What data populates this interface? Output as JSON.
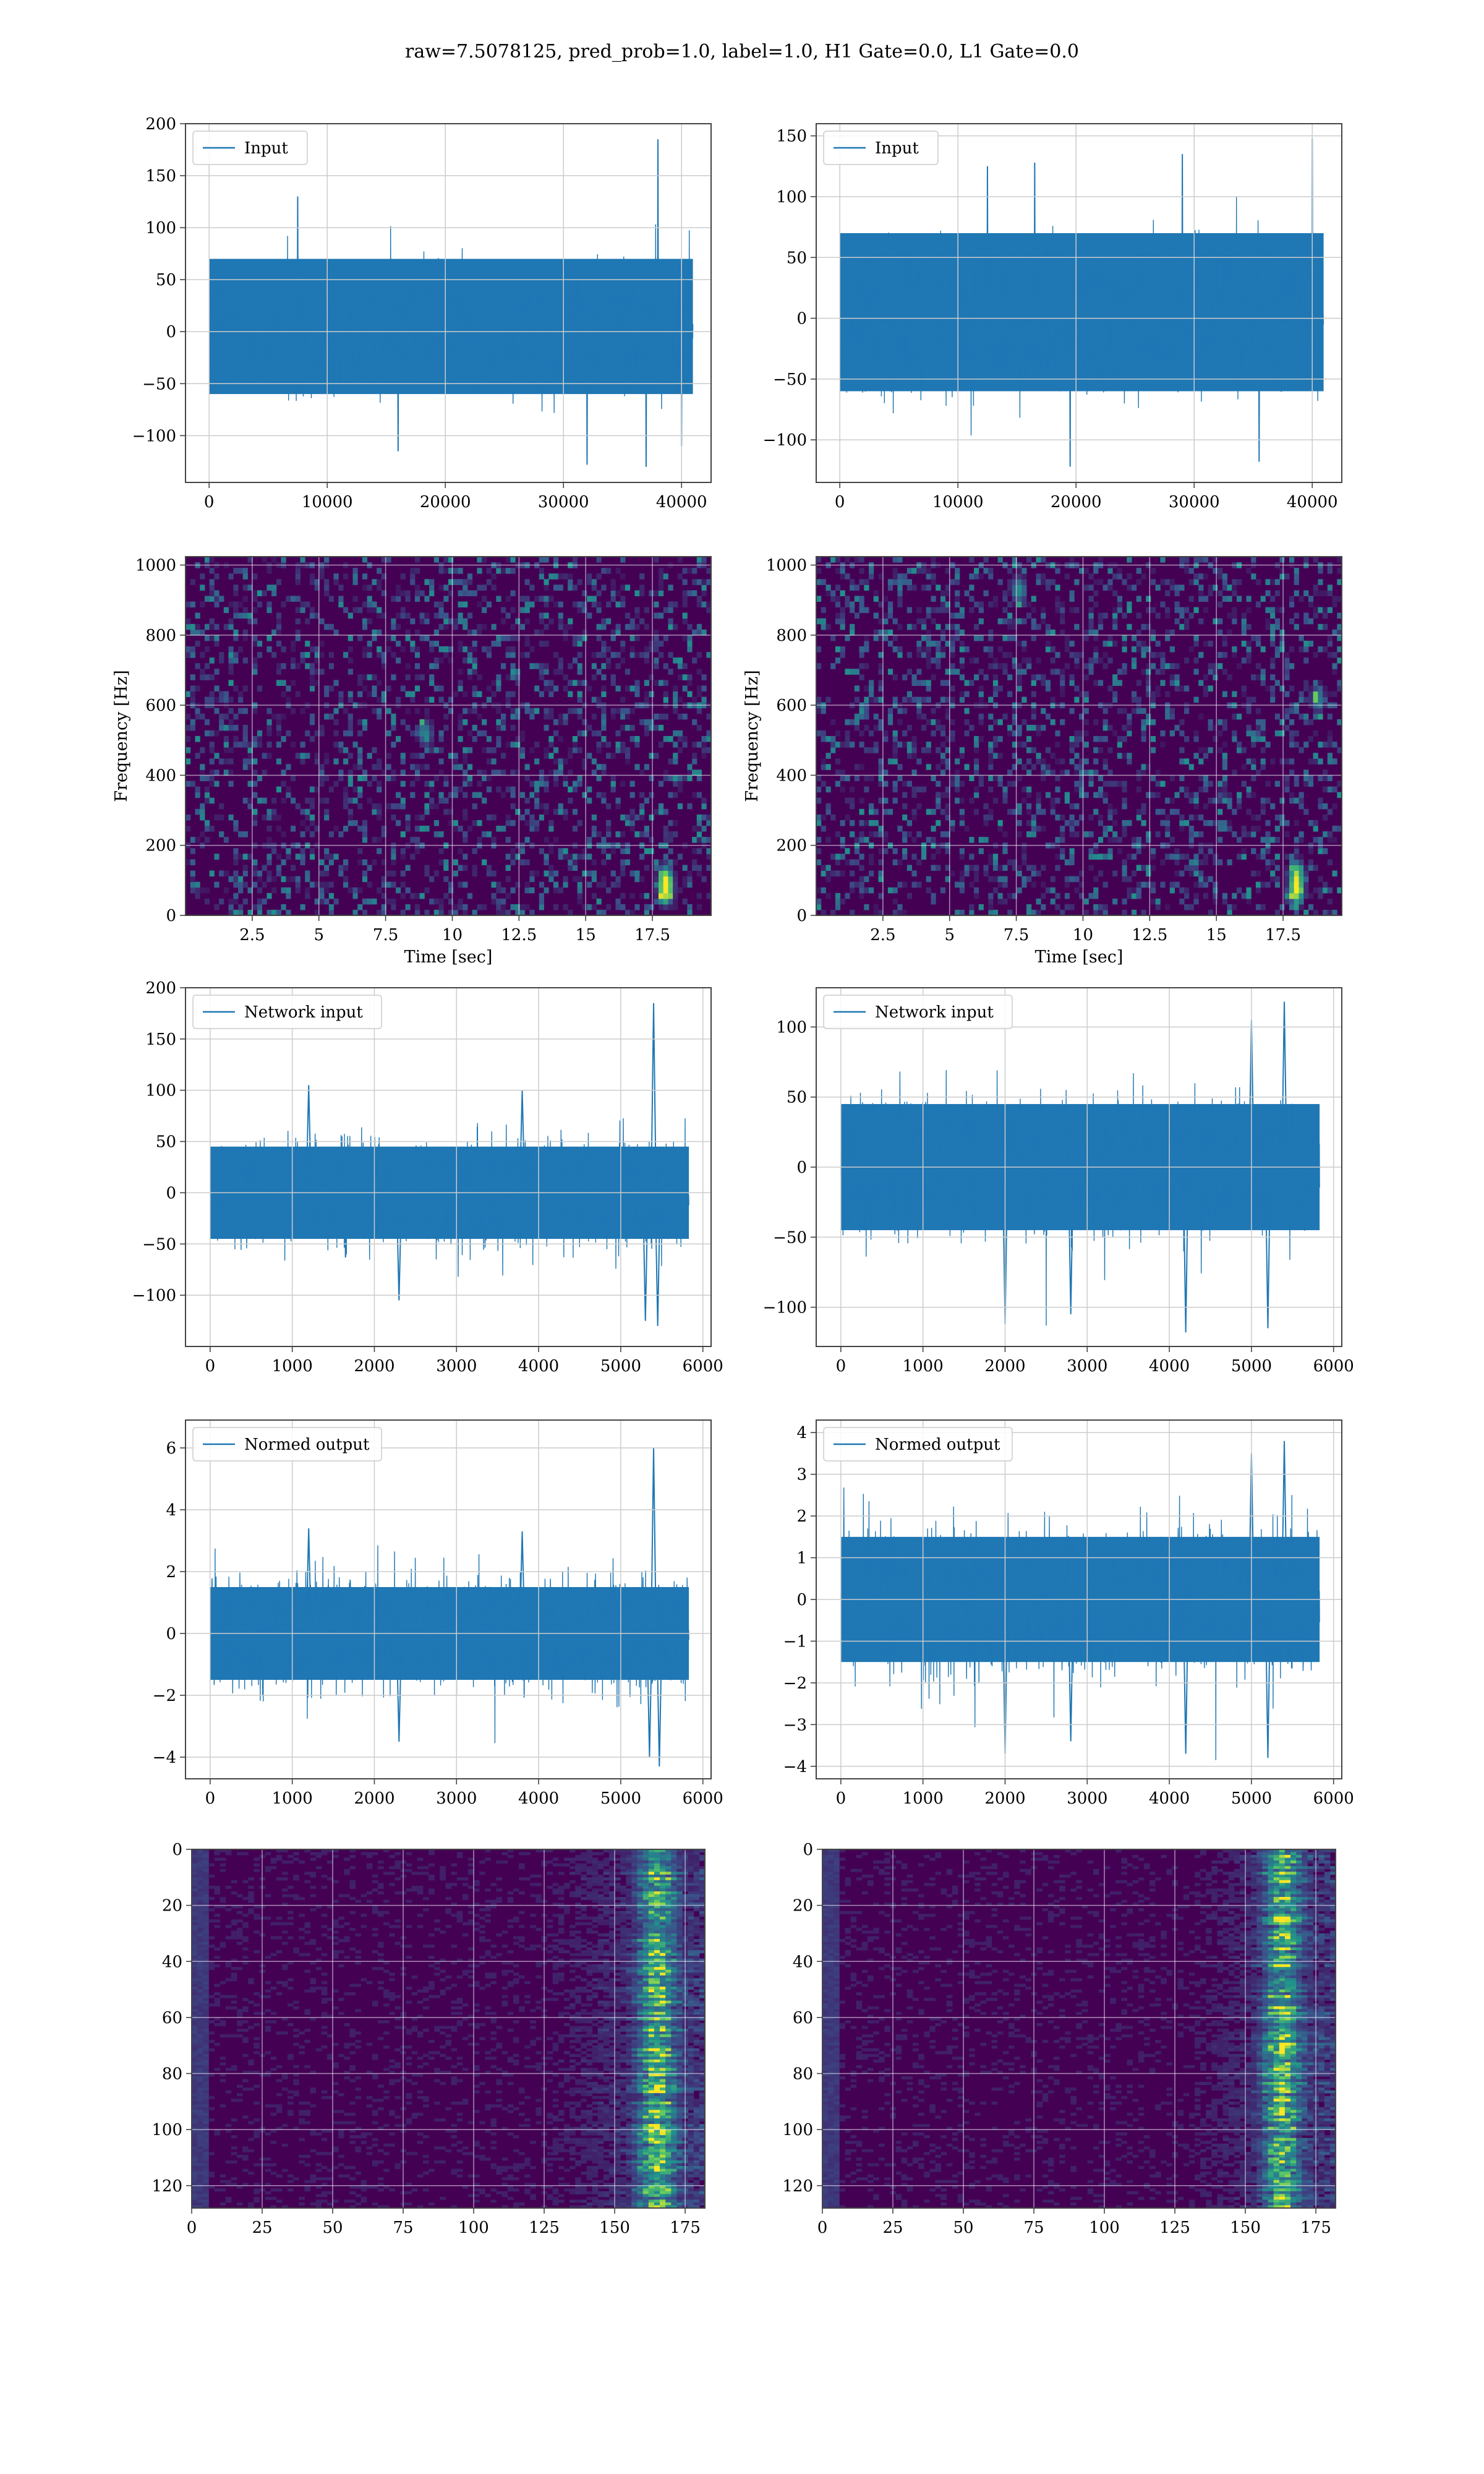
{
  "figure_title": "raw=7.5078125, pred_prob=1.0, label=1.0, H1 Gate=0.0, L1 Gate=0.0",
  "colors": {
    "line": "#1f77b4",
    "grid": "#cccccc",
    "axes": "#444444",
    "viridis_dark": "#440154",
    "viridis_mid": "#21918c",
    "viridis_light": "#fde725"
  },
  "chart_data": [
    {
      "id": "input-h1",
      "type": "line",
      "legend": "Input",
      "legend_loc": "upper-left",
      "xlim": [
        -2000,
        42500
      ],
      "ylim": [
        -145,
        200
      ],
      "xticks": [
        0,
        10000,
        20000,
        30000,
        40000
      ],
      "yticks": [
        -100,
        -50,
        0,
        50,
        100,
        150,
        200
      ],
      "x_range": [
        0,
        40960
      ],
      "band": [
        -60,
        70
      ],
      "noise_sigma": 22,
      "seed": 11,
      "spikes": [
        [
          38000,
          185
        ],
        [
          32000,
          -128
        ],
        [
          37000,
          -130
        ],
        [
          7500,
          130
        ],
        [
          16000,
          -115
        ],
        [
          40000,
          -110
        ]
      ],
      "xlabel": "",
      "ylabel": ""
    },
    {
      "id": "input-l1",
      "type": "line",
      "legend": "Input",
      "legend_loc": "upper-left",
      "xlim": [
        -2000,
        42500
      ],
      "ylim": [
        -135,
        160
      ],
      "xticks": [
        0,
        10000,
        20000,
        30000,
        40000
      ],
      "yticks": [
        -100,
        -50,
        0,
        50,
        100,
        150
      ],
      "x_range": [
        0,
        40960
      ],
      "band": [
        -60,
        70
      ],
      "noise_sigma": 24,
      "seed": 23,
      "spikes": [
        [
          40000,
          148
        ],
        [
          29000,
          135
        ],
        [
          16500,
          128
        ],
        [
          19500,
          -122
        ],
        [
          35500,
          -118
        ],
        [
          12500,
          125
        ]
      ],
      "xlabel": "",
      "ylabel": ""
    },
    {
      "id": "spec-h1",
      "type": "heatmap",
      "colormap": "viridis",
      "xlim": [
        0,
        19.7
      ],
      "ylim": [
        0,
        1024
      ],
      "xticks": [
        2.5,
        5.0,
        7.5,
        10.0,
        12.5,
        15.0,
        17.5
      ],
      "yticks": [
        0,
        200,
        400,
        600,
        800,
        1000
      ],
      "xlabel": "Time [sec]",
      "ylabel": "Frequency [Hz]",
      "seed": 37,
      "hot_spots": [
        [
          18.0,
          70,
          0.95
        ],
        [
          18.0,
          110,
          0.7
        ],
        [
          9.0,
          520,
          0.45
        ]
      ]
    },
    {
      "id": "spec-l1",
      "type": "heatmap",
      "colormap": "viridis",
      "xlim": [
        0,
        19.7
      ],
      "ylim": [
        0,
        1024
      ],
      "xticks": [
        2.5,
        5.0,
        7.5,
        10.0,
        12.5,
        15.0,
        17.5
      ],
      "yticks": [
        0,
        200,
        400,
        600,
        800,
        1000
      ],
      "xlabel": "Time [sec]",
      "ylabel": "Frequency [Hz]",
      "seed": 41,
      "hot_spots": [
        [
          18.0,
          70,
          0.95
        ],
        [
          18.0,
          120,
          0.75
        ],
        [
          7.6,
          930,
          0.5
        ],
        [
          18.8,
          620,
          0.45
        ]
      ]
    },
    {
      "id": "network-h1",
      "type": "line",
      "legend": "Network input",
      "legend_loc": "upper-left",
      "xlim": [
        -300,
        6100
      ],
      "ylim": [
        -150,
        200
      ],
      "xticks": [
        0,
        1000,
        2000,
        3000,
        4000,
        5000,
        6000
      ],
      "yticks": [
        -100,
        -50,
        0,
        50,
        100,
        150,
        200
      ],
      "x_range": [
        0,
        5830
      ],
      "band": [
        -45,
        45
      ],
      "noise_sigma": 22,
      "seed": 53,
      "spikes": [
        [
          5400,
          185
        ],
        [
          5450,
          -130
        ],
        [
          5300,
          -125
        ],
        [
          1200,
          105
        ],
        [
          3800,
          100
        ],
        [
          2300,
          -105
        ]
      ],
      "xlabel": "",
      "ylabel": ""
    },
    {
      "id": "network-l1",
      "type": "line",
      "legend": "Network input",
      "legend_loc": "upper-left",
      "xlim": [
        -300,
        6100
      ],
      "ylim": [
        -128,
        128
      ],
      "xticks": [
        0,
        1000,
        2000,
        3000,
        4000,
        5000,
        6000
      ],
      "yticks": [
        -100,
        -50,
        0,
        50,
        100
      ],
      "x_range": [
        0,
        5830
      ],
      "band": [
        -45,
        45
      ],
      "noise_sigma": 20,
      "seed": 67,
      "spikes": [
        [
          5400,
          118
        ],
        [
          4200,
          -118
        ],
        [
          5200,
          -115
        ],
        [
          2000,
          -112
        ],
        [
          5000,
          105
        ],
        [
          2800,
          -105
        ]
      ],
      "xlabel": "",
      "ylabel": ""
    },
    {
      "id": "normed-h1",
      "type": "line",
      "legend": "Normed output",
      "legend_loc": "upper-left",
      "xlim": [
        -300,
        6100
      ],
      "ylim": [
        -4.7,
        6.9
      ],
      "xticks": [
        0,
        1000,
        2000,
        3000,
        4000,
        5000,
        6000
      ],
      "yticks": [
        -4,
        -2,
        0,
        2,
        4,
        6
      ],
      "x_range": [
        0,
        5830
      ],
      "band": [
        -1.5,
        1.5
      ],
      "noise_sigma": 0.78,
      "seed": 71,
      "spikes": [
        [
          5400,
          6.0
        ],
        [
          5470,
          -4.3
        ],
        [
          5350,
          -4.0
        ],
        [
          1200,
          3.4
        ],
        [
          3800,
          3.3
        ],
        [
          2300,
          -3.5
        ]
      ],
      "xlabel": "",
      "ylabel": ""
    },
    {
      "id": "normed-l1",
      "type": "line",
      "legend": "Normed output",
      "legend_loc": "upper-left",
      "xlim": [
        -300,
        6100
      ],
      "ylim": [
        -4.3,
        4.3
      ],
      "xticks": [
        0,
        1000,
        2000,
        3000,
        4000,
        5000,
        6000
      ],
      "yticks": [
        -4,
        -3,
        -2,
        -1,
        0,
        1,
        2,
        3,
        4
      ],
      "x_range": [
        0,
        5830
      ],
      "band": [
        -1.5,
        1.5
      ],
      "noise_sigma": 0.75,
      "seed": 83,
      "spikes": [
        [
          5400,
          3.8
        ],
        [
          4200,
          -3.7
        ],
        [
          5200,
          -3.8
        ],
        [
          2000,
          -3.7
        ],
        [
          5000,
          3.5
        ],
        [
          2800,
          -3.4
        ]
      ],
      "xlabel": "",
      "ylabel": ""
    },
    {
      "id": "features-h1",
      "type": "heatmap",
      "colormap": "viridis",
      "xlim": [
        0,
        182
      ],
      "ylim": [
        128,
        0
      ],
      "xticks": [
        0,
        25,
        50,
        75,
        100,
        125,
        150,
        175
      ],
      "yticks": [
        0,
        20,
        40,
        60,
        80,
        100,
        120
      ],
      "xlabel": "",
      "ylabel": "",
      "seed": 97,
      "active_from": 125,
      "peak_at": 165
    },
    {
      "id": "features-l1",
      "type": "heatmap",
      "colormap": "viridis",
      "xlim": [
        0,
        182
      ],
      "ylim": [
        128,
        0
      ],
      "xticks": [
        0,
        25,
        50,
        75,
        100,
        125,
        150,
        175
      ],
      "yticks": [
        0,
        20,
        40,
        60,
        80,
        100,
        120
      ],
      "xlabel": "",
      "ylabel": "",
      "seed": 101,
      "active_from": 130,
      "peak_at": 163
    }
  ]
}
